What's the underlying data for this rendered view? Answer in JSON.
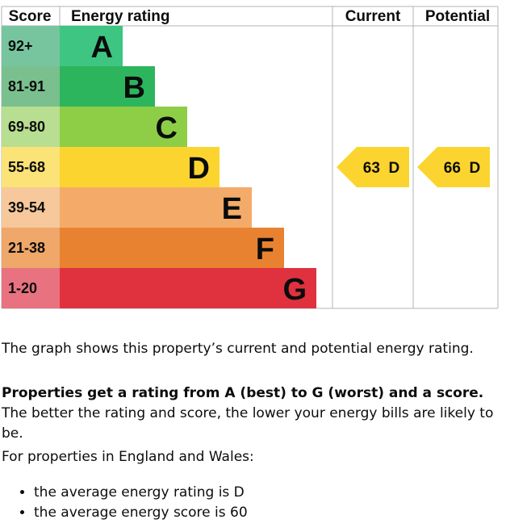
{
  "chart_data": {
    "type": "table",
    "headers": {
      "score": "Score",
      "rating": "Energy rating",
      "current": "Current",
      "potential": "Potential"
    },
    "bands": [
      {
        "score": "92+",
        "letter": "A",
        "color": "#3dc581"
      },
      {
        "score": "81-91",
        "letter": "B",
        "color": "#2db55d"
      },
      {
        "score": "69-80",
        "letter": "C",
        "color": "#8dce46"
      },
      {
        "score": "55-68",
        "letter": "D",
        "color": "#fcd430"
      },
      {
        "score": "39-54",
        "letter": "E",
        "color": "#f4ab6a"
      },
      {
        "score": "21-38",
        "letter": "F",
        "color": "#e98230"
      },
      {
        "score": "1-20",
        "letter": "G",
        "color": "#e0313f"
      }
    ],
    "score_cell_colors": [
      "#77c59e",
      "#7ac08e",
      "#b8de91",
      "#fbe378",
      "#f6c89b",
      "#efa76a",
      "#e97280"
    ],
    "current": {
      "value": 63,
      "letter": "D",
      "label": "63  D",
      "color": "#fcd430"
    },
    "potential": {
      "value": 66,
      "letter": "D",
      "label": "66  D",
      "color": "#fcd430"
    }
  },
  "text": {
    "graph_desc": "The graph shows this property’s current and potential energy rating.",
    "rating_bold": "Properties get a rating from A (best) to G (worst) and a score.",
    "rating_rest": " The better the rating and score, the lower your energy bills are likely to be.",
    "region": "For properties in England and Wales:",
    "bullets": [
      "the average energy rating is D",
      "the average energy score is 60"
    ]
  }
}
